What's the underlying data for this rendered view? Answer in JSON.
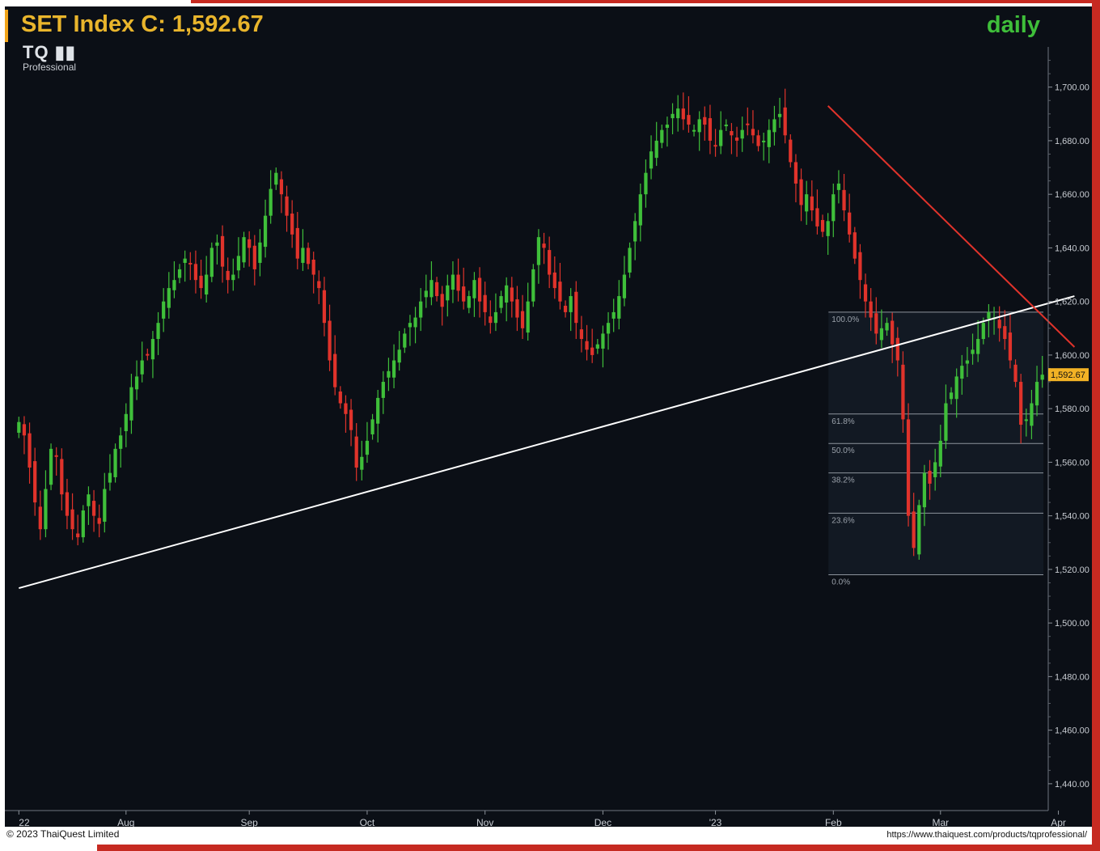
{
  "header": {
    "title_prefix": "SET Index C: ",
    "title_value": "1,592.67",
    "period": "daily",
    "logo_mark": "TQ",
    "logo_sub": "Professional"
  },
  "footer": {
    "copyright": "© 2023 ThaiQuest Limited",
    "url": "https://www.thaiquest.com/products/tqprofessional/"
  },
  "colors": {
    "background": "#0b0f16",
    "up_candle": "#3fbf3a",
    "down_candle": "#e0332b",
    "axis_text": "#c8ccd2",
    "trendline_support": "#ffffff",
    "trendline_resistance": "#e0332b",
    "price_tag": "#f2b225"
  },
  "chart_data": {
    "type": "candlestick",
    "symbol": "SET Index",
    "ylim": [
      1430,
      1715
    ],
    "y_ticks": [
      {
        "value": 1700,
        "label": "1,700.00"
      },
      {
        "value": 1680,
        "label": "1,680.00"
      },
      {
        "value": 1660,
        "label": "1,660.00"
      },
      {
        "value": 1640,
        "label": "1,640.00"
      },
      {
        "value": 1620,
        "label": "1,620.00"
      },
      {
        "value": 1600,
        "label": "1,600.00"
      },
      {
        "value": 1580,
        "label": "1,580.00"
      },
      {
        "value": 1560,
        "label": "1,560.00"
      },
      {
        "value": 1540,
        "label": "1,540.00"
      },
      {
        "value": 1520,
        "label": "1,520.00"
      },
      {
        "value": 1500,
        "label": "1,500.00"
      },
      {
        "value": 1480,
        "label": "1,480.00"
      },
      {
        "value": 1460,
        "label": "1,460.00"
      },
      {
        "value": 1440,
        "label": "1,440.00"
      }
    ],
    "x_labels": [
      {
        "label": "22",
        "bar": 0
      },
      {
        "label": "Aug",
        "bar": 20
      },
      {
        "label": "Sep",
        "bar": 43
      },
      {
        "label": "Oct",
        "bar": 65
      },
      {
        "label": "Nov",
        "bar": 87
      },
      {
        "label": "Dec",
        "bar": 109
      },
      {
        "label": "'23",
        "bar": 130
      },
      {
        "label": "Feb",
        "bar": 152
      },
      {
        "label": "Mar",
        "bar": 172
      },
      {
        "label": "Apr",
        "bar": 194
      }
    ],
    "last_price": 1592.67,
    "last_price_label": "1,592.67",
    "closes": [
      1575,
      1570,
      1558,
      1545,
      1535,
      1550,
      1565,
      1562,
      1548,
      1540,
      1535,
      1532,
      1542,
      1548,
      1540,
      1537,
      1550,
      1556,
      1565,
      1570,
      1578,
      1588,
      1592,
      1598,
      1600,
      1606,
      1612,
      1620,
      1625,
      1628,
      1632,
      1636,
      1634,
      1628,
      1625,
      1630,
      1640,
      1642,
      1633,
      1628,
      1630,
      1637,
      1644,
      1640,
      1632,
      1642,
      1652,
      1662,
      1668,
      1660,
      1652,
      1645,
      1636,
      1640,
      1634,
      1630,
      1625,
      1612,
      1598,
      1588,
      1582,
      1578,
      1572,
      1558,
      1562,
      1568,
      1576,
      1584,
      1590,
      1594,
      1598,
      1602,
      1608,
      1612,
      1614,
      1620,
      1624,
      1628,
      1622,
      1618,
      1626,
      1630,
      1624,
      1620,
      1622,
      1628,
      1620,
      1616,
      1612,
      1616,
      1622,
      1626,
      1620,
      1614,
      1610,
      1620,
      1632,
      1644,
      1640,
      1630,
      1625,
      1620,
      1616,
      1622,
      1612,
      1606,
      1602,
      1600,
      1604,
      1608,
      1612,
      1616,
      1622,
      1630,
      1640,
      1650,
      1660,
      1668,
      1676,
      1680,
      1684,
      1686,
      1690,
      1692,
      1688,
      1686,
      1684,
      1688,
      1686,
      1680,
      1678,
      1684,
      1686,
      1682,
      1680,
      1684,
      1686,
      1682,
      1678,
      1680,
      1684,
      1688,
      1690,
      1682,
      1672,
      1664,
      1656,
      1660,
      1654,
      1648,
      1646,
      1650,
      1660,
      1664,
      1654,
      1645,
      1636,
      1628,
      1620,
      1614,
      1608,
      1610,
      1612,
      1604,
      1598,
      1576,
      1540,
      1528,
      1544,
      1556,
      1552,
      1560,
      1568,
      1582,
      1586,
      1592,
      1596,
      1598,
      1602,
      1606,
      1612,
      1616,
      1614,
      1610,
      1606,
      1598,
      1590,
      1574,
      1576,
      1582,
      1590,
      1592.67
    ],
    "support_line": {
      "from_bar": 0,
      "from_value": 1513,
      "to_bar": 197,
      "to_value": 1622
    },
    "resistance_line": {
      "from_bar": 151,
      "from_value": 1693,
      "to_bar": 197,
      "to_value": 1603
    },
    "fibonacci": {
      "from_bar": 152,
      "levels": [
        {
          "label": "100.0%",
          "value": 1616
        },
        {
          "label": "61.8%",
          "value": 1578
        },
        {
          "label": "50.0%",
          "value": 1567
        },
        {
          "label": "38.2%",
          "value": 1556
        },
        {
          "label": "23.6%",
          "value": 1541
        },
        {
          "label": "0.0%",
          "value": 1518
        }
      ]
    }
  }
}
